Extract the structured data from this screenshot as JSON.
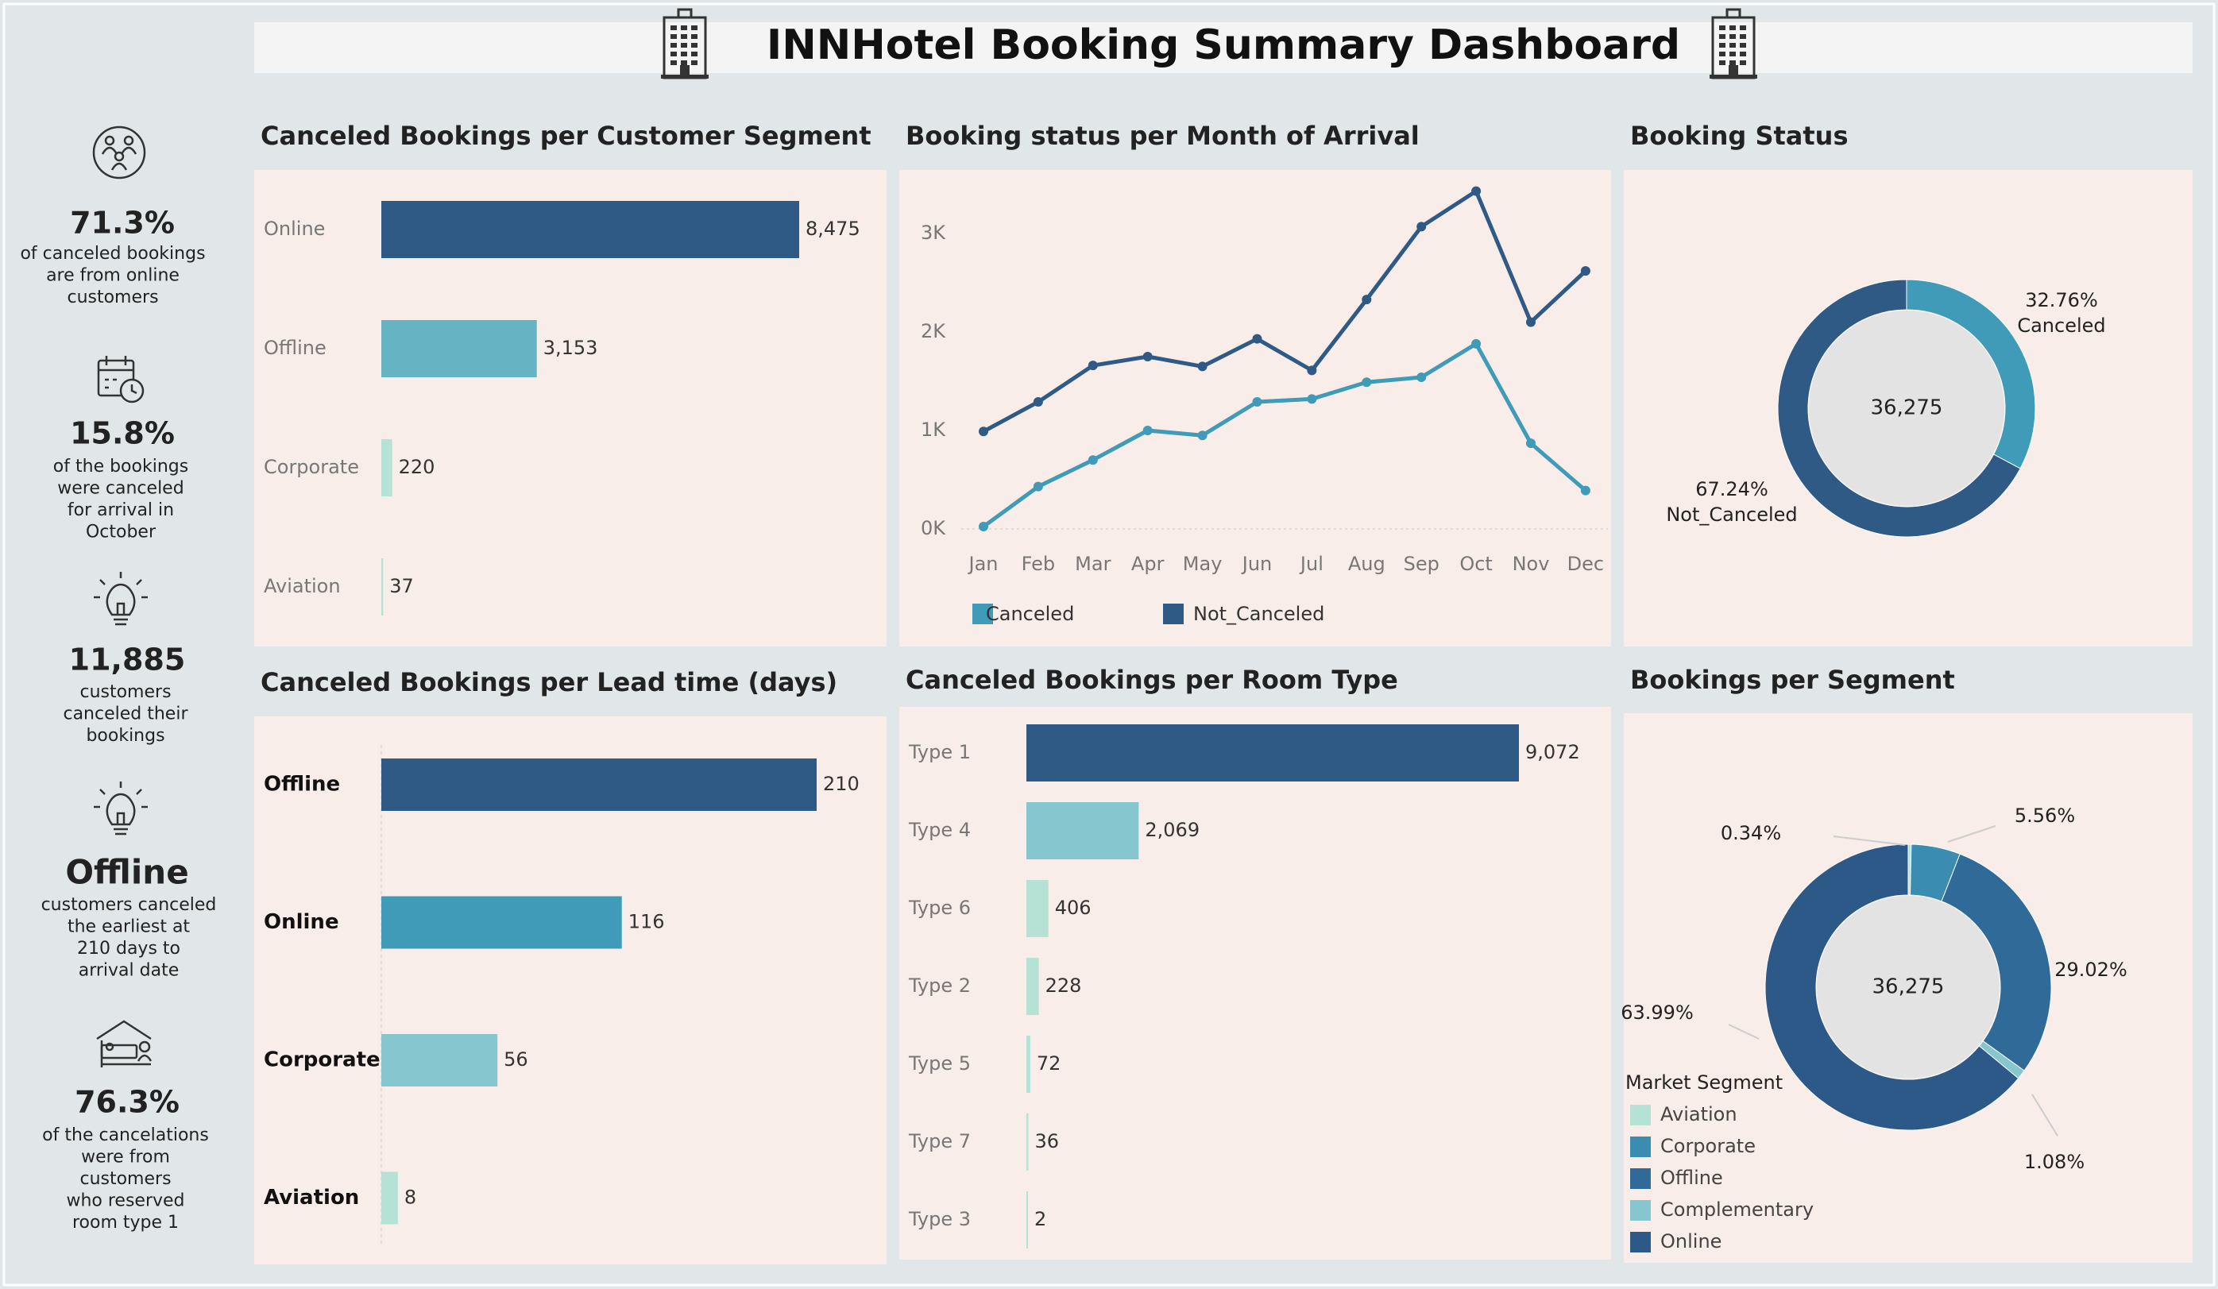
{
  "dashboard": {
    "title": "INNHotel Booking Summary Dashboard",
    "colors": {
      "background": "#e1e7e9",
      "panel": "#f8ede8",
      "title_bar": "#f4f4f4",
      "dark_blue": "#2f5a86",
      "mid_blue": "#3f9bb8",
      "teal": "#86c6cf",
      "light_teal": "#b6e2d6",
      "ring_gray": "#e3e3e3",
      "text_gray": "#777777"
    },
    "icons": [
      "hotel-building-icon",
      "hotel-building-icon"
    ]
  },
  "kpis": [
    {
      "icon": "people-group-icon",
      "value": "71.3%",
      "text": "of canceled bookings\nare from online\ncustomers"
    },
    {
      "icon": "calendar-clock-icon",
      "value": "15.8%",
      "text": "of the bookings\nwere canceled\nfor  arrival in\nOctober"
    },
    {
      "icon": "lightbulb-icon",
      "value": "11,885",
      "text": "customers\ncanceled their\nbookings"
    },
    {
      "icon": "lightbulb-icon",
      "value": "Offline",
      "text": "customers canceled\nthe earliest at\n210 days to\narrival date"
    },
    {
      "icon": "hotel-room-bed-icon",
      "value": "76.3%",
      "text": "of the cancelations\nwere from\ncustomers\nwho reserved\nroom type 1"
    }
  ],
  "chart_data": [
    {
      "id": "segment",
      "type": "bar",
      "title": "Canceled Bookings per Customer Segment",
      "categories": [
        "Online",
        "Offline",
        "Corporate",
        "Aviation"
      ],
      "values": [
        8475,
        3153,
        220,
        37
      ],
      "labels": [
        "8,475",
        "3,153",
        "220",
        "37"
      ],
      "colors": [
        "#2f5a86",
        "#64b4c3",
        "#b6e2d6",
        "#b6e2d6"
      ],
      "bold_categories": false
    },
    {
      "id": "monthly",
      "type": "line",
      "title": "Booking status per Month of Arrival",
      "x": [
        "Jan",
        "Feb",
        "Mar",
        "Apr",
        "May",
        "Jun",
        "Jul",
        "Aug",
        "Sep",
        "Oct",
        "Nov",
        "Dec"
      ],
      "yticks": [
        "0K",
        "1K",
        "2K",
        "3K"
      ],
      "ylim": [
        0,
        3600
      ],
      "series": [
        {
          "name": "Canceled",
          "color": "#3f9bb8",
          "values": [
            24,
            430,
            700,
            1000,
            950,
            1290,
            1320,
            1490,
            1540,
            1880,
            870,
            390
          ]
        },
        {
          "name": "Not_Canceled",
          "color": "#2f5a86",
          "values": [
            990,
            1290,
            1660,
            1750,
            1650,
            1930,
            1610,
            2330,
            3070,
            3430,
            2100,
            2620
          ]
        }
      ],
      "legend_position": "bottom"
    },
    {
      "id": "status",
      "type": "pie",
      "title": "Booking Status",
      "center_label": "36,275",
      "slices": [
        {
          "name": "Canceled",
          "value": 32.76,
          "label": "32.76%\nCanceled",
          "color": "#3f9bb8"
        },
        {
          "name": "Not_Canceled",
          "value": 67.24,
          "label": "67.24%\nNot_Canceled",
          "color": "#2f5a86"
        }
      ]
    },
    {
      "id": "leadtime",
      "type": "bar",
      "title": "Canceled Bookings per Lead time (days)",
      "categories": [
        "Offline",
        "Online",
        "Corporate",
        "Aviation"
      ],
      "values": [
        210,
        116,
        56,
        8
      ],
      "labels": [
        "210",
        "116",
        "56",
        "8"
      ],
      "colors": [
        "#2f5a86",
        "#3f9bb8",
        "#86c6cf",
        "#b6e2d6"
      ],
      "bold_categories": true
    },
    {
      "id": "roomtype",
      "type": "bar",
      "title": "Canceled Bookings per Room Type",
      "categories": [
        "Type 1",
        "Type 4",
        "Type 6",
        "Type 2",
        "Type 5",
        "Type 7",
        "Type 3"
      ],
      "values": [
        9072,
        2069,
        406,
        228,
        72,
        36,
        2
      ],
      "labels": [
        "9,072",
        "2,069",
        "406",
        "228",
        "72",
        "36",
        "2"
      ],
      "colors": [
        "#2f5a86",
        "#86c6cf",
        "#b6e2d6",
        "#b6e2d6",
        "#b6e2d6",
        "#b6e2d6",
        "#b6e2d6"
      ],
      "bold_categories": false
    },
    {
      "id": "segments",
      "type": "pie",
      "title": "Bookings per Segment",
      "center_label": "36,275",
      "slices": [
        {
          "name": "Aviation",
          "value": 0.34,
          "label": "0.34%",
          "color": "#b6e2d6"
        },
        {
          "name": "Corporate",
          "value": 5.56,
          "label": "5.56%",
          "color": "#3a8db0"
        },
        {
          "name": "Offline",
          "value": 29.02,
          "label": "29.02%",
          "color": "#2f6a98"
        },
        {
          "name": "Complementary",
          "value": 1.08,
          "label": "1.08%",
          "color": "#86c6cf"
        },
        {
          "name": "Online",
          "value": 63.99,
          "label": "63.99%",
          "color": "#2d5988"
        }
      ],
      "legend": {
        "title": "Market Segment",
        "items": [
          {
            "name": "Aviation",
            "color": "#b6e2d6"
          },
          {
            "name": "Corporate",
            "color": "#3a8db0"
          },
          {
            "name": "Offline",
            "color": "#2f6a98"
          },
          {
            "name": "Complementary",
            "color": "#86c6cf"
          },
          {
            "name": "Online",
            "color": "#2d5988"
          }
        ]
      }
    }
  ]
}
